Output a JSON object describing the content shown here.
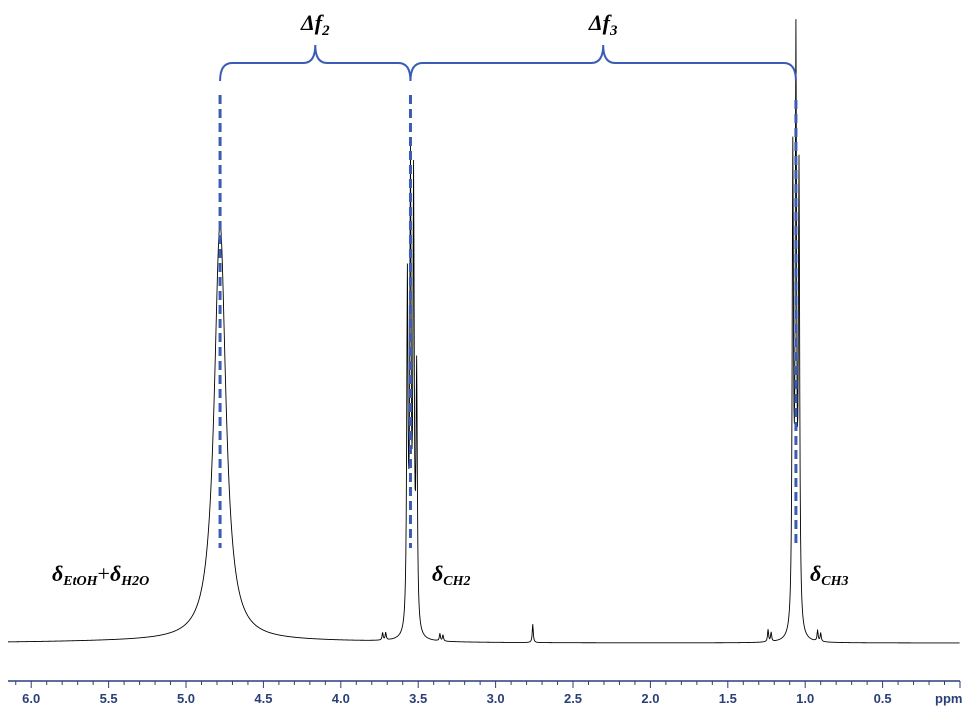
{
  "chart_data": {
    "type": "line",
    "xlabel": "ppm",
    "x_reversed": true,
    "xlim": [
      6.15,
      0.0
    ],
    "ylim": [
      0,
      1
    ],
    "grid": false,
    "ticks": [
      {
        "value": 6.0,
        "label": "6.0"
      },
      {
        "value": 5.5,
        "label": "5.5"
      },
      {
        "value": 5.0,
        "label": "5.0"
      },
      {
        "value": 4.5,
        "label": "4.5"
      },
      {
        "value": 4.0,
        "label": "4.0"
      },
      {
        "value": 3.5,
        "label": "3.5"
      },
      {
        "value": 3.0,
        "label": "3.0"
      },
      {
        "value": 2.5,
        "label": "2.5"
      },
      {
        "value": 2.0,
        "label": "2.0"
      },
      {
        "value": 1.5,
        "label": "1.5"
      },
      {
        "value": 1.0,
        "label": "1.0"
      },
      {
        "value": 0.5,
        "label": "0.5"
      }
    ],
    "peaks": [
      {
        "ppm": 4.78,
        "height": 0.68,
        "width": 0.045
      },
      {
        "ppm": 3.57,
        "height": 0.56,
        "width": 0.005
      },
      {
        "ppm": 3.55,
        "height": 0.73,
        "width": 0.005
      },
      {
        "ppm": 3.53,
        "height": 0.71,
        "width": 0.005
      },
      {
        "ppm": 3.51,
        "height": 0.41,
        "width": 0.005
      },
      {
        "ppm": 1.08,
        "height": 0.76,
        "width": 0.005
      },
      {
        "ppm": 1.06,
        "height": 0.93,
        "width": 0.005
      },
      {
        "ppm": 1.04,
        "height": 0.73,
        "width": 0.005
      },
      {
        "ppm": 3.73,
        "height": 0.012,
        "width": 0.004
      },
      {
        "ppm": 3.71,
        "height": 0.012,
        "width": 0.004
      },
      {
        "ppm": 3.36,
        "height": 0.012,
        "width": 0.004
      },
      {
        "ppm": 3.34,
        "height": 0.01,
        "width": 0.004
      },
      {
        "ppm": 2.76,
        "height": 0.03,
        "width": 0.004
      },
      {
        "ppm": 1.24,
        "height": 0.02,
        "width": 0.004
      },
      {
        "ppm": 1.22,
        "height": 0.015,
        "width": 0.004
      },
      {
        "ppm": 0.92,
        "height": 0.018,
        "width": 0.004
      },
      {
        "ppm": 0.9,
        "height": 0.014,
        "width": 0.004
      }
    ],
    "dashed_markers": [
      4.78,
      3.55,
      1.06
    ],
    "annotations": {
      "df2_main": "Δf",
      "df2_sub": "2",
      "df3_main": "Δf",
      "df3_sub": "3",
      "ethanol_water_d1": "δ",
      "ethanol_water_sub1": "EtOH",
      "ethanol_water_plus": "+",
      "ethanol_water_d2": "δ",
      "ethanol_water_sub2": "H2O",
      "ch2_d": "δ",
      "ch2_sub": "CH2",
      "ch3_d": "δ",
      "ch3_sub": "CH3"
    },
    "colors": {
      "spectrum": "#000000",
      "accent": "#3a5cb4",
      "axis": "#2a3f7a"
    }
  }
}
